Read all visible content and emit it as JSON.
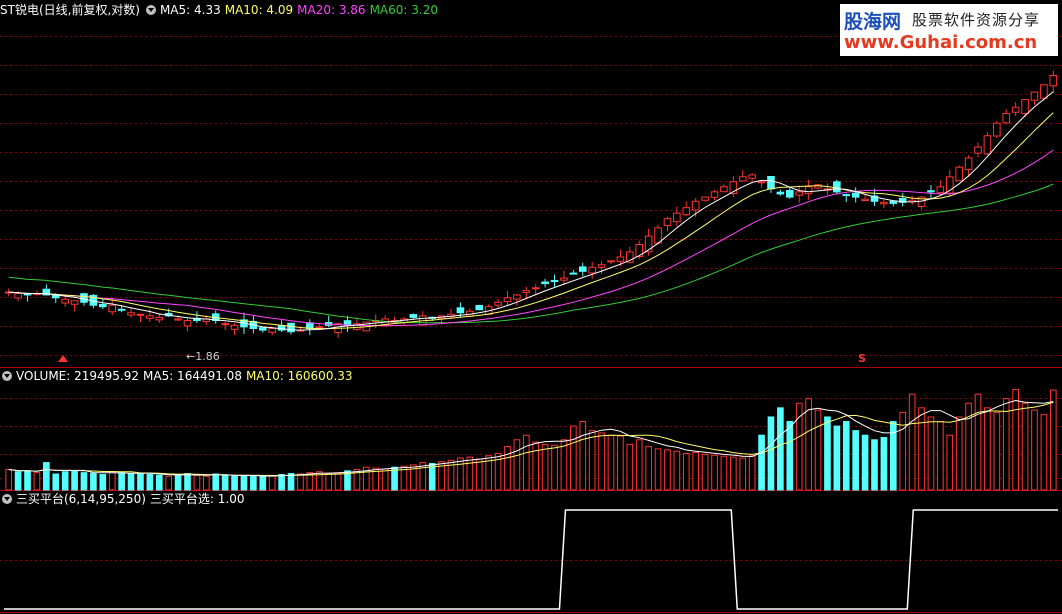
{
  "colors": {
    "bg": "#000000",
    "grid": "#8b0000",
    "frame": "#b00000",
    "up": "#ff3333",
    "down": "#55ffff",
    "flat": "#ffffff",
    "ma5": "#ffffff",
    "ma10": "#ffff66",
    "ma20": "#ff44ff",
    "ma60": "#33cc33",
    "signal": "#ffffff"
  },
  "logo": {
    "brand": "股海网",
    "slogan": "股票软件资源分享",
    "url": "www.Guhai.com.cn"
  },
  "panel1": {
    "stock": "ST锐电",
    "mode": "(日线,前复权,对数)",
    "ma5_label": "MA5: 4.33",
    "ma10_label": "MA10: 4.09",
    "ma20_label": "MA20: 3.86",
    "ma60_label": "MA60: 3.20",
    "low_marker": "1.86",
    "buy_marker": "S"
  },
  "panel2": {
    "volume_label": "VOLUME: 219495.92",
    "ma5_label": "MA5: 164491.08",
    "ma10_label": "MA10: 160600.33"
  },
  "panel3": {
    "indicator_label": "三买平台(6,14,95,250)",
    "value_label": "三买平台选: 1.00"
  },
  "chart_data": [
    {
      "type": "candlestick",
      "title": "ST锐电 日线 前复权 对数",
      "log_scale": true,
      "low_point": 1.86,
      "last_ma": {
        "MA5": 4.33,
        "MA10": 4.09,
        "MA20": 3.86,
        "MA60": 3.2
      },
      "close_approx": [
        2.12,
        2.11,
        2.1,
        2.11,
        2.1,
        2.08,
        2.07,
        2.06,
        2.05,
        2.03,
        2.02,
        2.03,
        2.0,
        1.98,
        1.97,
        1.96,
        1.95,
        1.96,
        1.94,
        1.93,
        1.93,
        1.94,
        1.93,
        1.91,
        1.9,
        1.89,
        1.88,
        1.87,
        1.88,
        1.87,
        1.86,
        1.87,
        1.88,
        1.89,
        1.9,
        1.91,
        1.9,
        1.91,
        1.92,
        1.93,
        1.94,
        1.93,
        1.94,
        1.95,
        1.96,
        1.95,
        1.96,
        1.97,
        1.98,
        1.99,
        2.0,
        2.02,
        2.05,
        2.08,
        2.1,
        2.13,
        2.15,
        2.18,
        2.2,
        2.22,
        2.25,
        2.27,
        2.3,
        2.32,
        2.35,
        2.38,
        2.42,
        2.48,
        2.55,
        2.62,
        2.7,
        2.75,
        2.8,
        2.86,
        2.9,
        2.95,
        3.0,
        3.05,
        3.1,
        3.12,
        3.05,
        2.98,
        2.93,
        2.9,
        2.95,
        3.0,
        3.02,
        2.98,
        2.95,
        2.92,
        2.9,
        2.88,
        2.86,
        2.85,
        2.84,
        2.85,
        2.87,
        2.9,
        2.95,
        3.0,
        3.1,
        3.2,
        3.3,
        3.42,
        3.55,
        3.7,
        3.82,
        3.9,
        4.0,
        4.1,
        4.2,
        4.33
      ]
    },
    {
      "type": "bar",
      "title": "VOLUME",
      "last": {
        "VOLUME": 219495.92,
        "MA5": 164491.08,
        "MA10": 160600.33
      },
      "values_approx": [
        45,
        40,
        42,
        38,
        60,
        35,
        40,
        42,
        38,
        36,
        34,
        40,
        38,
        36,
        35,
        34,
        32,
        30,
        34,
        36,
        32,
        30,
        35,
        33,
        30,
        31,
        30,
        29,
        32,
        34,
        36,
        35,
        38,
        40,
        36,
        38,
        42,
        45,
        50,
        48,
        46,
        50,
        52,
        55,
        60,
        58,
        62,
        65,
        70,
        72,
        68,
        75,
        80,
        95,
        110,
        120,
        105,
        100,
        98,
        110,
        140,
        150,
        130,
        125,
        120,
        118,
        100,
        110,
        95,
        90,
        88,
        85,
        80,
        82,
        78,
        76,
        74,
        72,
        70,
        75,
        120,
        160,
        180,
        150,
        190,
        200,
        175,
        160,
        140,
        150,
        130,
        120,
        110,
        115,
        150,
        170,
        210,
        180,
        160,
        150,
        120,
        160,
        190,
        210,
        180,
        170,
        200,
        220,
        190,
        175,
        165,
        219
      ]
    },
    {
      "type": "line",
      "title": "三买平台(6,14,95,250)",
      "signal_value": 1.0,
      "segments": [
        {
          "from_pct": 0.0,
          "to_pct": 0.527,
          "value": 0
        },
        {
          "from_pct": 0.527,
          "to_pct": 0.69,
          "value": 1
        },
        {
          "from_pct": 0.69,
          "to_pct": 0.857,
          "value": 0
        },
        {
          "from_pct": 0.857,
          "to_pct": 1.0,
          "value": 1
        }
      ]
    }
  ]
}
